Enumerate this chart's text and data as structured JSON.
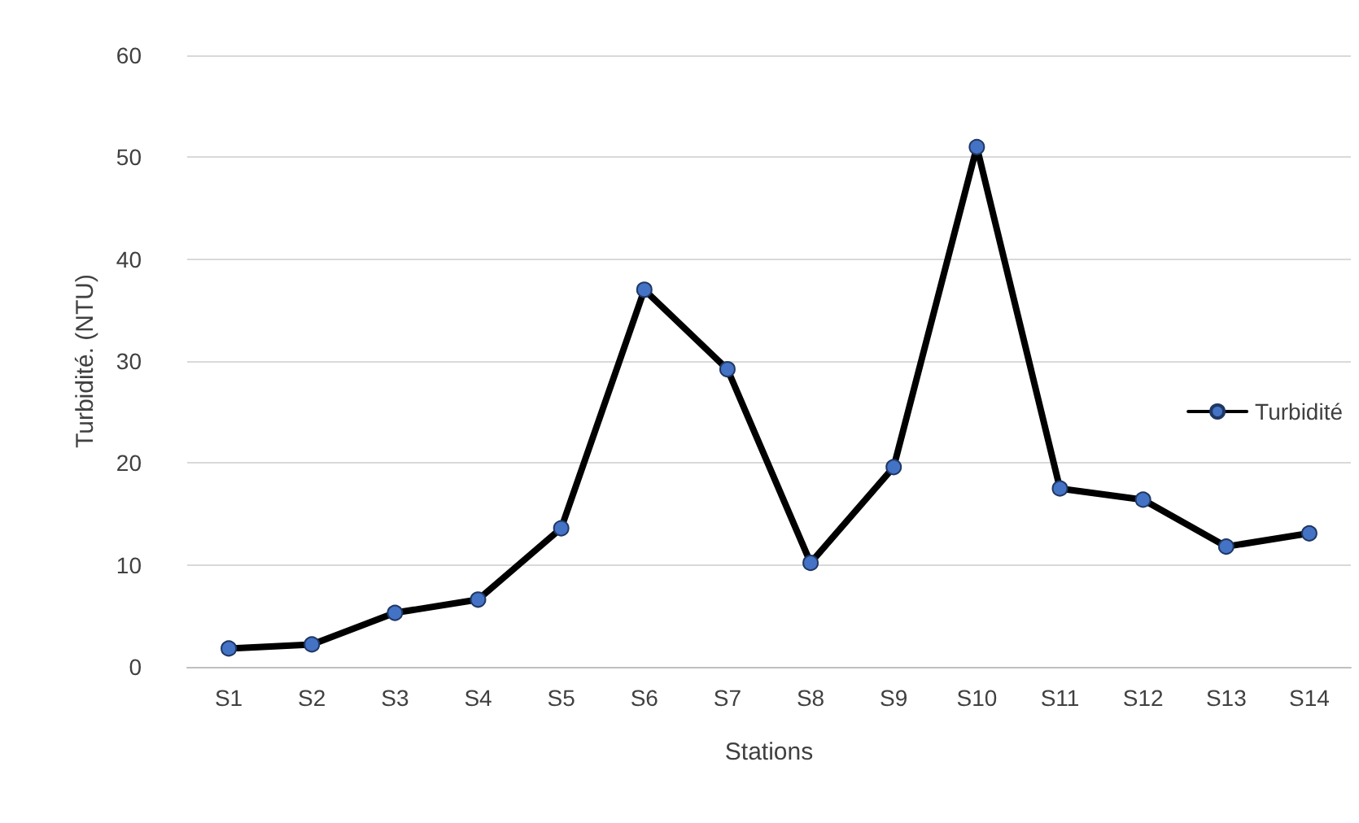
{
  "chart_data": {
    "type": "line",
    "xlabel": "Stations",
    "ylabel": "Turbidité. (NTU)",
    "categories": [
      "S1",
      "S2",
      "S3",
      "S4",
      "S5",
      "S6",
      "S7",
      "S8",
      "S9",
      "S10",
      "S11",
      "S12",
      "S13",
      "S14"
    ],
    "series": [
      {
        "name": "Turbidité",
        "color": "#000000",
        "colors": [
          "#4472c4",
          "#4472c4",
          "#4472c4",
          "#4472c4",
          "#4472c4",
          "#4472c4",
          "#4472c4",
          "#4472c4",
          "#4472c4",
          "#4472c4",
          "#4472c4",
          "#4472c4",
          "#4472c4",
          "#4472c4"
        ],
        "values": [
          1.8,
          2.2,
          5.3,
          6.6,
          13.6,
          37,
          29.2,
          10.2,
          19.6,
          51,
          17.5,
          16.4,
          11.8,
          13.1
        ]
      }
    ],
    "ylim": [
      0,
      60
    ],
    "yticks": [
      0,
      10,
      20,
      30,
      40,
      50,
      60
    ],
    "grid": "y",
    "legend": "right",
    "marker": "circle",
    "line_style": "solid"
  }
}
